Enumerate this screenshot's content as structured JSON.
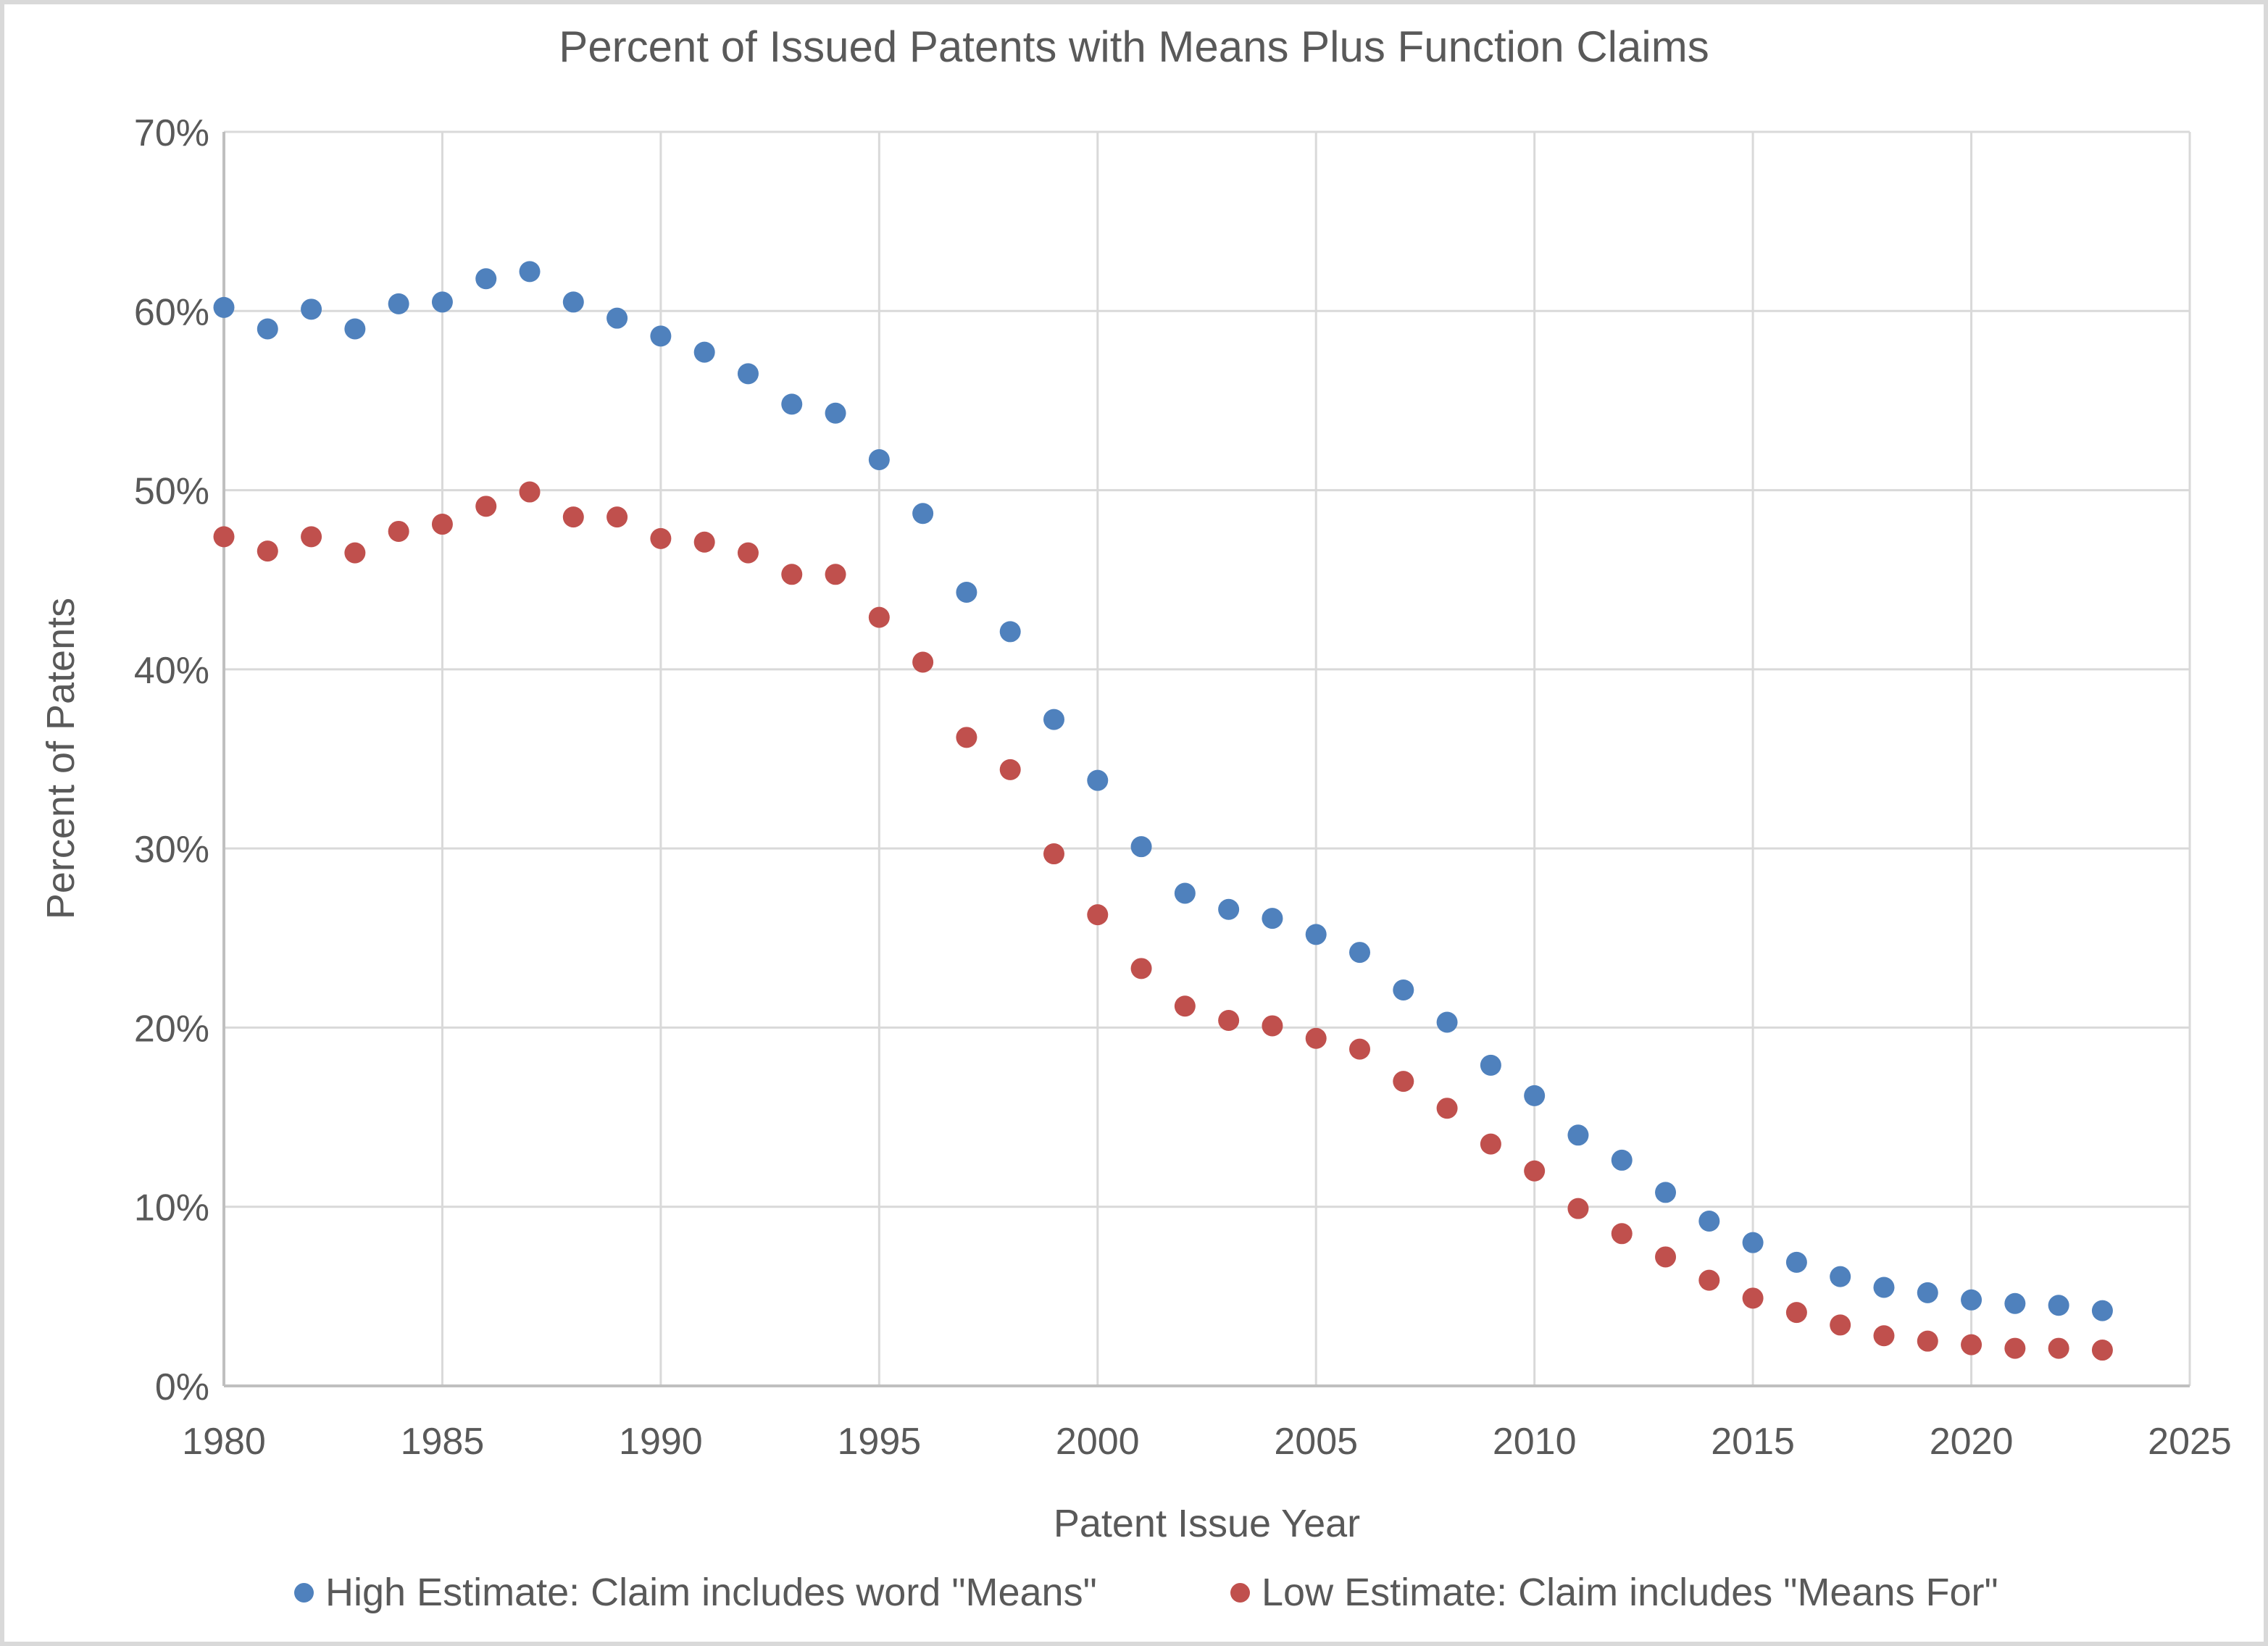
{
  "title": "Percent of Issued Patents with Means Plus Function Claims",
  "colors": {
    "high_series": "#4F81BD",
    "low_series": "#C0504D",
    "grid": "#D9D9D9",
    "axis": "#BFBFBF",
    "text": "#595959",
    "background": "#FFFFFF"
  },
  "chart_data": {
    "type": "scatter",
    "title": "Percent of Issued Patents with Means Plus Function Claims",
    "xlabel": "Patent Issue Year",
    "ylabel": "Percent of Patents",
    "xlim": [
      1980,
      2025
    ],
    "ylim": [
      0,
      70
    ],
    "grid": true,
    "legend_position": "bottom",
    "x_tick_values": [
      1980,
      1985,
      1990,
      1995,
      2000,
      2005,
      2010,
      2015,
      2020,
      2025
    ],
    "x_tick_labels": [
      "1980",
      "1985",
      "1990",
      "1995",
      "2000",
      "2005",
      "2010",
      "2015",
      "2020",
      "2025"
    ],
    "y_tick_values": [
      0,
      10,
      20,
      30,
      40,
      50,
      60,
      70
    ],
    "y_tick_labels": [
      "0%",
      "10%",
      "20%",
      "30%",
      "40%",
      "50%",
      "60%",
      "70%"
    ],
    "x": [
      1980,
      1981,
      1982,
      1983,
      1984,
      1985,
      1986,
      1987,
      1988,
      1989,
      1990,
      1991,
      1992,
      1993,
      1994,
      1995,
      1996,
      1997,
      1998,
      1999,
      2000,
      2001,
      2002,
      2003,
      2004,
      2005,
      2006,
      2007,
      2008,
      2009,
      2010,
      2011,
      2012,
      2013,
      2014,
      2015,
      2016,
      2017,
      2018,
      2019,
      2020,
      2021,
      2022,
      2023
    ],
    "series": [
      {
        "name": "High Estimate: Claim includes word \"Means\"",
        "color": "#4F81BD",
        "values": [
          60.2,
          59.0,
          60.1,
          59.0,
          60.4,
          60.5,
          61.8,
          62.2,
          60.5,
          59.6,
          58.6,
          57.7,
          56.5,
          54.8,
          54.3,
          51.7,
          48.7,
          44.3,
          42.1,
          37.2,
          33.8,
          30.1,
          27.5,
          26.6,
          26.1,
          25.2,
          24.2,
          22.1,
          20.3,
          17.9,
          16.2,
          14.0,
          12.6,
          10.8,
          9.2,
          8.0,
          6.9,
          6.1,
          5.5,
          5.2,
          4.8,
          4.6,
          4.5,
          4.2
        ]
      },
      {
        "name": "Low Estimate: Claim includes \"Means For\"",
        "color": "#C0504D",
        "values": [
          47.4,
          46.6,
          47.4,
          46.5,
          47.7,
          48.1,
          49.1,
          49.9,
          48.5,
          48.5,
          47.3,
          47.1,
          46.5,
          45.3,
          45.3,
          42.9,
          40.4,
          36.2,
          34.4,
          29.7,
          26.3,
          23.3,
          21.2,
          20.4,
          20.1,
          19.4,
          18.8,
          17.0,
          15.5,
          13.5,
          12.0,
          9.9,
          8.5,
          7.2,
          5.9,
          4.9,
          4.1,
          3.4,
          2.8,
          2.5,
          2.3,
          2.1,
          2.1,
          2.0
        ]
      }
    ]
  }
}
